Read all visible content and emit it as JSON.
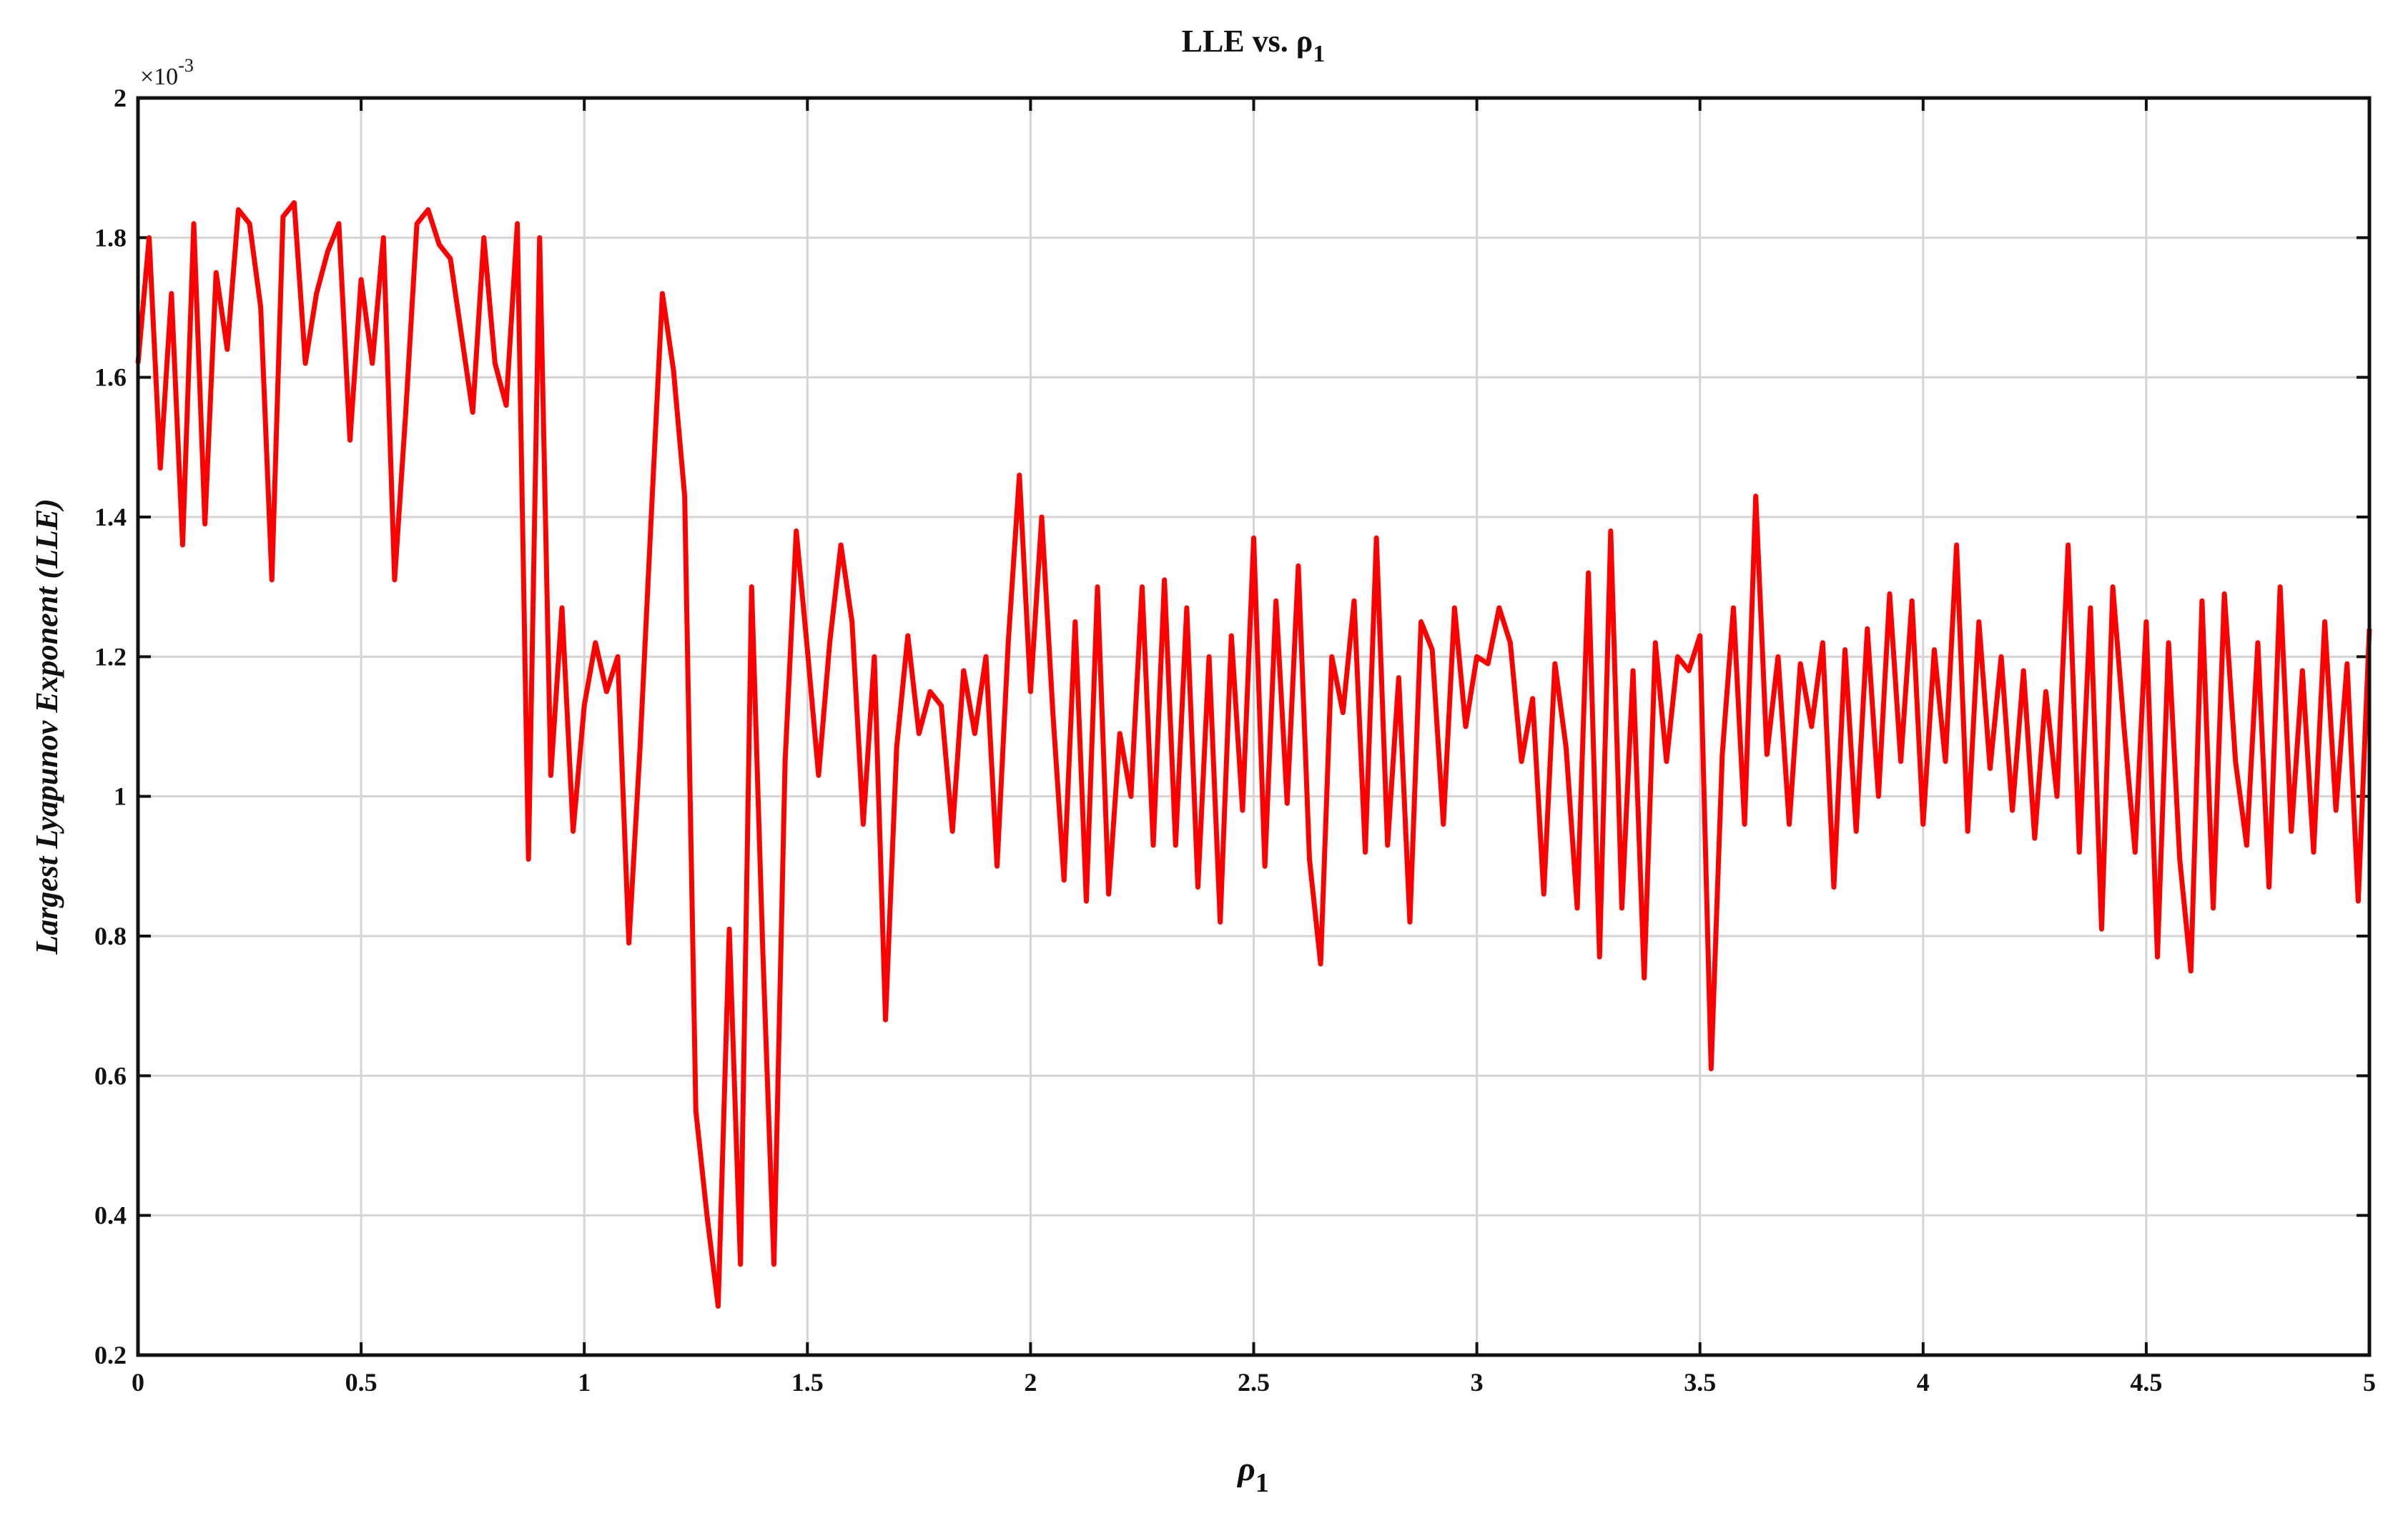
{
  "chart_data": {
    "type": "line",
    "title": "LLE vs. ρ",
    "title_subscript": "1",
    "x_label": "ρ",
    "x_label_subscript": "1",
    "y_label": "Largest Lyapunov Exponent (LLE)",
    "y_multiplier": "×10",
    "y_multiplier_exponent": "-3",
    "color": "#ff0000",
    "grid": true,
    "xlim": [
      0,
      5
    ],
    "xticks": [
      0,
      0.5,
      1,
      1.5,
      2,
      2.5,
      3,
      3.5,
      4,
      4.5,
      5
    ],
    "ylim": [
      0.2,
      2
    ],
    "yticks": [
      0.2,
      0.4,
      0.6,
      0.8,
      1,
      1.2,
      1.4,
      1.6,
      1.8,
      2
    ],
    "x": [
      0,
      0.025,
      0.05,
      0.075,
      0.1,
      0.125,
      0.15,
      0.175,
      0.2,
      0.225,
      0.25,
      0.275,
      0.3,
      0.325,
      0.35,
      0.375,
      0.4,
      0.425,
      0.45,
      0.475,
      0.5,
      0.525,
      0.55,
      0.575,
      0.6,
      0.625,
      0.65,
      0.675,
      0.7,
      0.725,
      0.75,
      0.775,
      0.8,
      0.825,
      0.85,
      0.875,
      0.9,
      0.925,
      0.95,
      0.975,
      1,
      1.025,
      1.05,
      1.075,
      1.1,
      1.125,
      1.15,
      1.175,
      1.2,
      1.225,
      1.25,
      1.275,
      1.3,
      1.325,
      1.35,
      1.375,
      1.4,
      1.425,
      1.45,
      1.475,
      1.5,
      1.525,
      1.55,
      1.575,
      1.6,
      1.625,
      1.65,
      1.675,
      1.7,
      1.725,
      1.75,
      1.775,
      1.8,
      1.825,
      1.85,
      1.875,
      1.9,
      1.925,
      1.95,
      1.975,
      2,
      2.025,
      2.05,
      2.075,
      2.1,
      2.125,
      2.15,
      2.175,
      2.2,
      2.225,
      2.25,
      2.275,
      2.3,
      2.325,
      2.35,
      2.375,
      2.4,
      2.425,
      2.45,
      2.475,
      2.5,
      2.525,
      2.55,
      2.575,
      2.6,
      2.625,
      2.65,
      2.675,
      2.7,
      2.725,
      2.75,
      2.775,
      2.8,
      2.825,
      2.85,
      2.875,
      2.9,
      2.925,
      2.95,
      2.975,
      3,
      3.025,
      3.05,
      3.075,
      3.1,
      3.125,
      3.15,
      3.175,
      3.2,
      3.225,
      3.25,
      3.275,
      3.3,
      3.325,
      3.35,
      3.375,
      3.4,
      3.425,
      3.45,
      3.475,
      3.5,
      3.525,
      3.55,
      3.575,
      3.6,
      3.625,
      3.65,
      3.675,
      3.7,
      3.725,
      3.75,
      3.775,
      3.8,
      3.825,
      3.85,
      3.875,
      3.9,
      3.925,
      3.95,
      3.975,
      4,
      4.025,
      4.05,
      4.075,
      4.1,
      4.125,
      4.15,
      4.175,
      4.2,
      4.225,
      4.25,
      4.275,
      4.3,
      4.325,
      4.35,
      4.375,
      4.4,
      4.425,
      4.45,
      4.475,
      4.5,
      4.525,
      4.55,
      4.575,
      4.6,
      4.625,
      4.65,
      4.675,
      4.7,
      4.725,
      4.75,
      4.775,
      4.8,
      4.825,
      4.85,
      4.875,
      4.9,
      4.925,
      4.95,
      4.975,
      5
    ],
    "values": [
      1.62,
      1.8,
      1.47,
      1.72,
      1.36,
      1.82,
      1.39,
      1.75,
      1.64,
      1.84,
      1.82,
      1.7,
      1.31,
      1.83,
      1.85,
      1.62,
      1.72,
      1.78,
      1.82,
      1.51,
      1.74,
      1.62,
      1.8,
      1.31,
      1.55,
      1.82,
      1.84,
      1.79,
      1.77,
      1.66,
      1.55,
      1.8,
      1.62,
      1.56,
      1.82,
      0.91,
      1.8,
      1.03,
      1.27,
      0.95,
      1.13,
      1.22,
      1.15,
      1.2,
      0.79,
      1.07,
      1.4,
      1.72,
      1.61,
      1.43,
      0.55,
      0.4,
      0.27,
      0.81,
      0.33,
      1.3,
      0.78,
      0.33,
      1.05,
      1.38,
      1.21,
      1.03,
      1.22,
      1.36,
      1.25,
      0.96,
      1.2,
      0.68,
      1.07,
      1.23,
      1.09,
      1.15,
      1.13,
      0.95,
      1.18,
      1.09,
      1.2,
      0.9,
      1.22,
      1.46,
      1.15,
      1.4,
      1.12,
      0.88,
      1.25,
      0.85,
      1.3,
      0.86,
      1.09,
      1.0,
      1.3,
      0.93,
      1.31,
      0.93,
      1.27,
      0.87,
      1.2,
      0.82,
      1.23,
      0.98,
      1.37,
      0.9,
      1.28,
      0.99,
      1.33,
      0.91,
      0.76,
      1.2,
      1.12,
      1.28,
      0.92,
      1.37,
      0.93,
      1.17,
      0.82,
      1.25,
      1.21,
      0.96,
      1.27,
      1.1,
      1.2,
      1.19,
      1.27,
      1.22,
      1.05,
      1.14,
      0.86,
      1.19,
      1.07,
      0.84,
      1.32,
      0.77,
      1.38,
      0.84,
      1.18,
      0.74,
      1.22,
      1.05,
      1.2,
      1.18,
      1.23,
      0.61,
      1.06,
      1.27,
      0.96,
      1.43,
      1.06,
      1.2,
      0.96,
      1.19,
      1.1,
      1.22,
      0.87,
      1.21,
      0.95,
      1.24,
      1.0,
      1.29,
      1.05,
      1.28,
      0.96,
      1.21,
      1.05,
      1.36,
      0.95,
      1.25,
      1.04,
      1.2,
      0.98,
      1.18,
      0.94,
      1.15,
      1.0,
      1.36,
      0.92,
      1.27,
      0.81,
      1.3,
      1.1,
      0.92,
      1.25,
      0.77,
      1.22,
      0.91,
      0.75,
      1.28,
      0.84,
      1.29,
      1.05,
      0.93,
      1.22,
      0.87,
      1.3,
      0.95,
      1.18,
      0.92,
      1.25,
      0.98,
      1.19,
      0.85,
      1.24
    ]
  }
}
